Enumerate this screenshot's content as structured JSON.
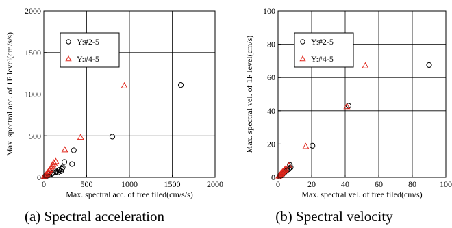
{
  "chart_data": [
    {
      "type": "scatter",
      "caption": "(a) Spectral acceleration",
      "xlabel": "Max. spectral acc. of free filed(cm/s/s)",
      "ylabel": "Max. spectral acc. of 1F level(cm/s/s)",
      "xlim": [
        0,
        2000
      ],
      "ylim": [
        0,
        2000
      ],
      "xticks": [
        "0",
        "500",
        "1000",
        "1500",
        "2000"
      ],
      "yticks": [
        "0",
        "500",
        "1000",
        "1500",
        "2000"
      ],
      "grid": true,
      "legend_position": "top-left",
      "series": [
        {
          "name": "Y:#2-5",
          "marker": "circle",
          "color": "#000000",
          "points": [
            [
              10,
              8
            ],
            [
              18,
              12
            ],
            [
              25,
              18
            ],
            [
              30,
              15
            ],
            [
              40,
              22
            ],
            [
              55,
              25
            ],
            [
              65,
              28
            ],
            [
              80,
              35
            ],
            [
              95,
              45
            ],
            [
              110,
              55
            ],
            [
              130,
              60
            ],
            [
              150,
              70
            ],
            [
              165,
              60
            ],
            [
              175,
              85
            ],
            [
              185,
              90
            ],
            [
              200,
              75
            ],
            [
              210,
              100
            ],
            [
              220,
              120
            ],
            [
              240,
              185
            ],
            [
              330,
              160
            ],
            [
              350,
              325
            ],
            [
              800,
              490
            ],
            [
              1600,
              1110
            ]
          ]
        },
        {
          "name": "Y:#4-5",
          "marker": "triangle",
          "color": "#e0261b",
          "points": [
            [
              5,
              10
            ],
            [
              15,
              20
            ],
            [
              25,
              30
            ],
            [
              35,
              40
            ],
            [
              45,
              55
            ],
            [
              55,
              70
            ],
            [
              65,
              80
            ],
            [
              75,
              95
            ],
            [
              85,
              110
            ],
            [
              95,
              130
            ],
            [
              105,
              150
            ],
            [
              115,
              175
            ],
            [
              125,
              160
            ],
            [
              140,
              190
            ],
            [
              245,
              330
            ],
            [
              430,
              480
            ],
            [
              940,
              1100
            ]
          ]
        }
      ]
    },
    {
      "type": "scatter",
      "caption": "(b) Spectral velocity",
      "xlabel": "Max. spectral vel. of free filed(cm/s)",
      "ylabel": "Max. spectral vel. of 1F level(cm/s)",
      "xlim": [
        0,
        100
      ],
      "ylim": [
        0,
        100
      ],
      "xticks": [
        "0",
        "20",
        "40",
        "60",
        "80",
        "100"
      ],
      "yticks": [
        "0",
        "20",
        "40",
        "60",
        "80",
        "100"
      ],
      "grid": true,
      "legend_position": "top-left",
      "series": [
        {
          "name": "Y:#2-5",
          "marker": "circle",
          "color": "#000000",
          "points": [
            [
              0.8,
              0.5
            ],
            [
              1.2,
              1.0
            ],
            [
              1.8,
              1.5
            ],
            [
              2.2,
              1.2
            ],
            [
              2.8,
              2.0
            ],
            [
              3.2,
              2.5
            ],
            [
              3.8,
              3.0
            ],
            [
              4.2,
              3.5
            ],
            [
              4.8,
              4.0
            ],
            [
              5.5,
              4.5
            ],
            [
              6.5,
              5.0
            ],
            [
              7.0,
              7.5
            ],
            [
              7.5,
              6.0
            ],
            [
              20.5,
              19.0
            ],
            [
              42.0,
              43.0
            ],
            [
              90.0,
              67.5
            ]
          ]
        },
        {
          "name": "Y:#4-5",
          "marker": "triangle",
          "color": "#e0261b",
          "points": [
            [
              0.5,
              0.8
            ],
            [
              1.0,
              1.2
            ],
            [
              1.5,
              1.8
            ],
            [
              2.0,
              2.2
            ],
            [
              2.5,
              3.0
            ],
            [
              3.0,
              3.5
            ],
            [
              3.5,
              4.0
            ],
            [
              4.0,
              4.5
            ],
            [
              4.5,
              5.0
            ],
            [
              6.5,
              7.0
            ],
            [
              16.5,
              18.5
            ],
            [
              41.0,
              42.5
            ],
            [
              52.0,
              67.0
            ]
          ]
        }
      ]
    }
  ]
}
